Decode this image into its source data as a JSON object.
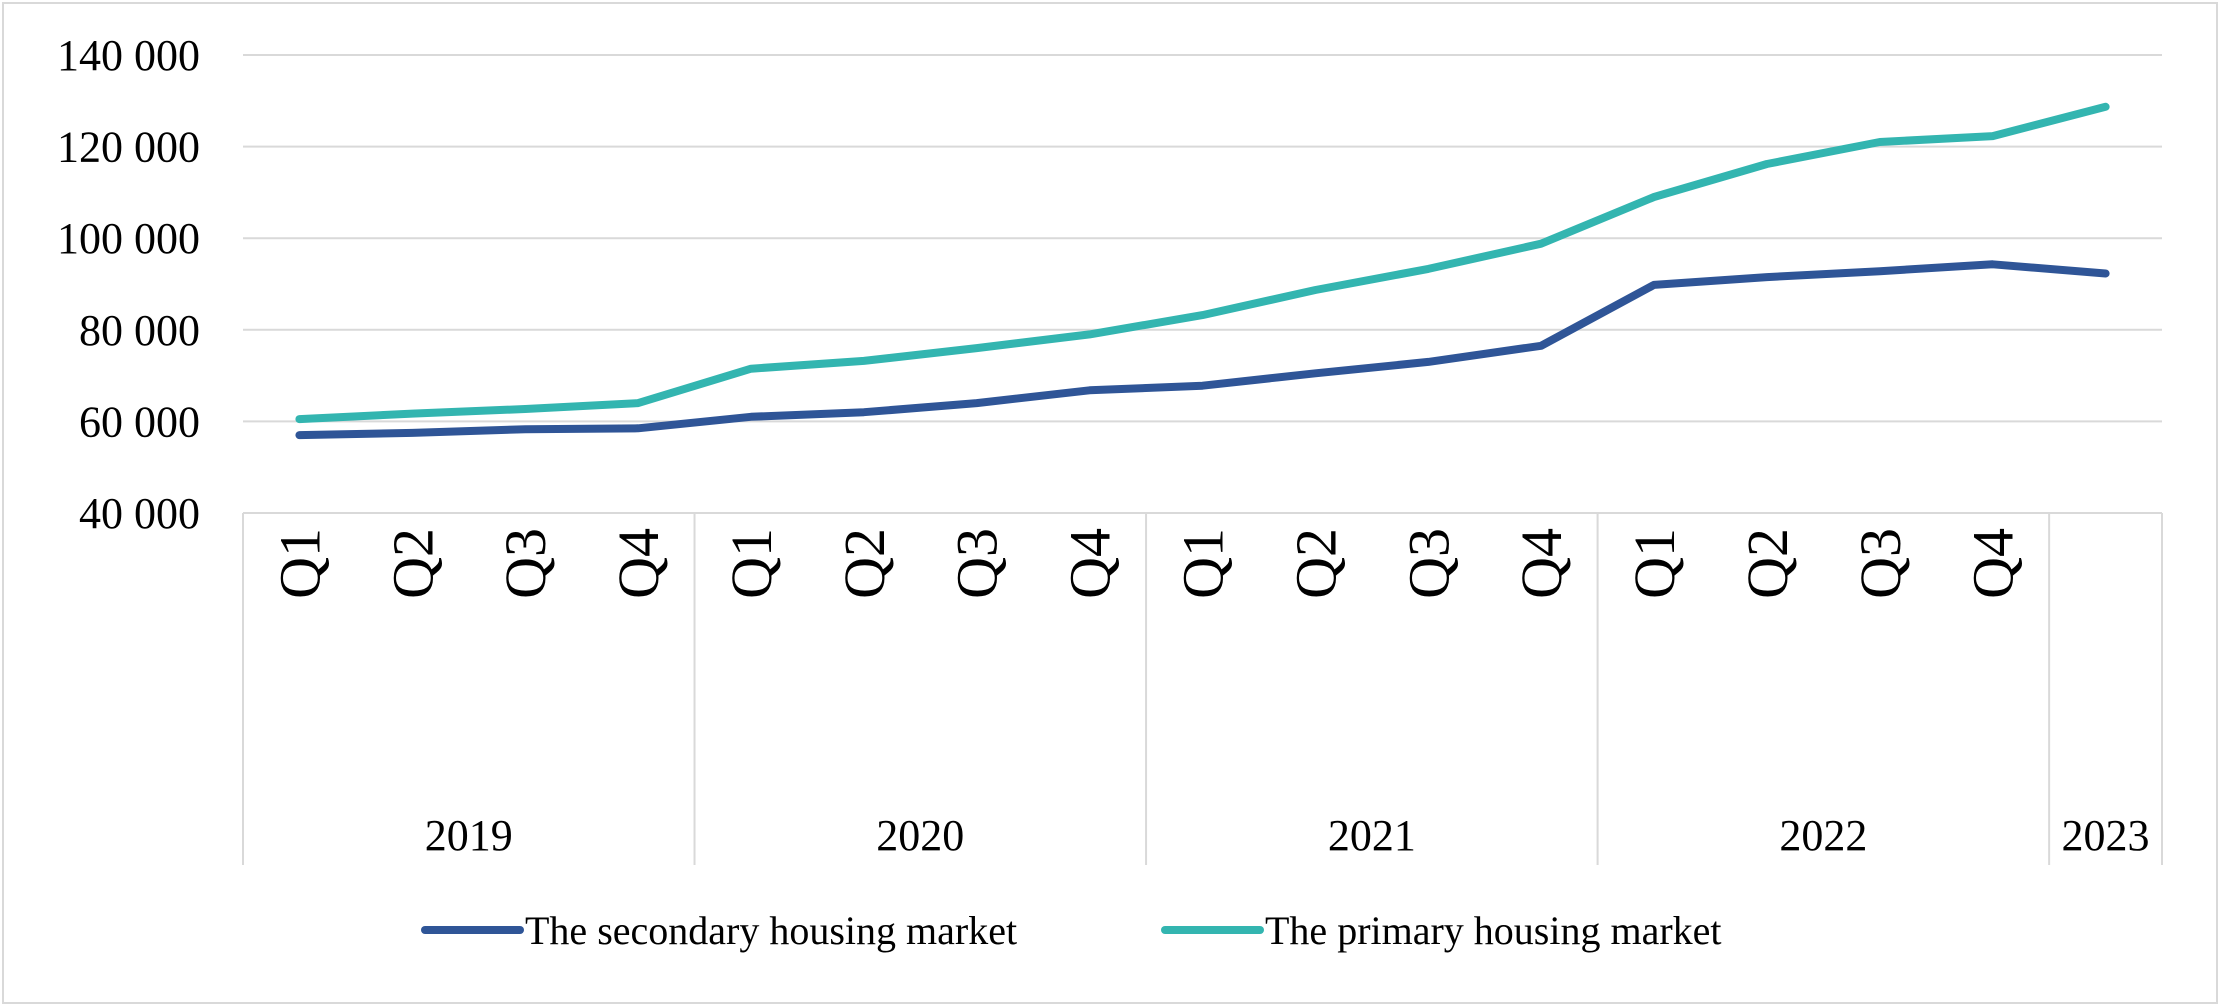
{
  "chart_data": {
    "type": "line",
    "title": "",
    "xlabel": "",
    "ylabel": "",
    "ylim": [
      40000,
      140000
    ],
    "yticks": [
      40000,
      60000,
      80000,
      100000,
      120000,
      140000
    ],
    "ytick_labels": [
      "40 000",
      "60 000",
      "80 000",
      "100 000",
      "120 000",
      "140 000"
    ],
    "grid": true,
    "legend": "bottom",
    "categories": [
      "Q1",
      "Q2",
      "Q3",
      "Q4",
      "Q1",
      "Q2",
      "Q3",
      "Q4",
      "Q1",
      "Q2",
      "Q3",
      "Q4",
      "Q1",
      "Q2",
      "Q3",
      "Q4",
      ""
    ],
    "years": [
      {
        "label": "2019",
        "count": 4
      },
      {
        "label": "2020",
        "count": 4
      },
      {
        "label": "2021",
        "count": 4
      },
      {
        "label": "2022",
        "count": 4
      },
      {
        "label": "2023",
        "count": 1
      }
    ],
    "series": [
      {
        "name": "The secondary housing market",
        "color": "#2f5597",
        "values": [
          57000,
          57500,
          58300,
          58500,
          61000,
          62000,
          64000,
          66800,
          67800,
          70500,
          73000,
          76500,
          89800,
          91500,
          92800,
          94300,
          92300
        ]
      },
      {
        "name": "The primary housing market",
        "color": "#33b5b0",
        "values": [
          60500,
          61700,
          62700,
          64000,
          71500,
          73200,
          76000,
          79000,
          83200,
          88700,
          93300,
          98800,
          109000,
          116200,
          121000,
          122300,
          128700
        ]
      }
    ]
  }
}
